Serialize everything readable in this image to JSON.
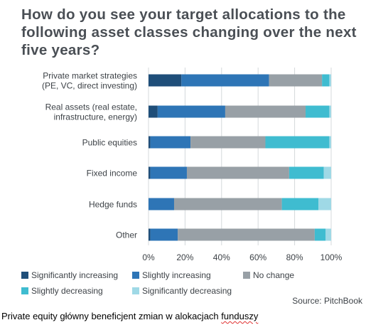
{
  "chart_data": {
    "type": "bar",
    "orientation": "horizontal",
    "stacked": true,
    "title": "How do you see your target allocations to the following asset classes changing over the next five years?",
    "categories": [
      [
        "Private market strategies",
        "(PE, VC, direct investing)"
      ],
      [
        "Real assets (real estate,",
        "infrastructure, energy)"
      ],
      [
        "Public equities"
      ],
      [
        "Fixed income"
      ],
      [
        "Hedge funds"
      ],
      [
        "Other"
      ]
    ],
    "series": [
      {
        "name": "Significantly increasing",
        "color": "#1f4e79",
        "values": [
          18,
          5,
          1,
          1,
          0,
          1
        ]
      },
      {
        "name": "Slightly increasing",
        "color": "#2e75b6",
        "values": [
          48,
          37,
          22,
          20,
          14,
          15
        ]
      },
      {
        "name": "No change",
        "color": "#98a0a6",
        "values": [
          29,
          44,
          41,
          56,
          59,
          75
        ]
      },
      {
        "name": "Slightly decreasing",
        "color": "#3fbcd0",
        "values": [
          4,
          13,
          35,
          19,
          20,
          6
        ]
      },
      {
        "name": "Significantly decreasing",
        "color": "#9fd9e6",
        "values": [
          1,
          1,
          1,
          4,
          7,
          3
        ]
      }
    ],
    "xlim": [
      0,
      100
    ],
    "xticks": [
      "0%",
      "20%",
      "40%",
      "60%",
      "80%",
      "100%"
    ],
    "grid": true,
    "legend_position": "bottom",
    "source": "Source: PitchBook"
  },
  "caption": {
    "before": "Private equity główny beneficjent zmian w alokacjach ",
    "underlined": "funduszy"
  }
}
